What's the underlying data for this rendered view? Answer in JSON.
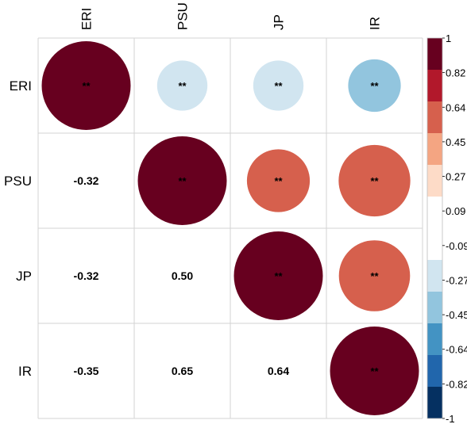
{
  "chart_data": {
    "type": "heatmap",
    "variables": [
      "ERI",
      "PSU",
      "JP",
      "IR"
    ],
    "matrix": [
      [
        1.0,
        -0.32,
        -0.32,
        -0.35
      ],
      [
        -0.32,
        1.0,
        0.5,
        0.65
      ],
      [
        -0.32,
        0.5,
        1.0,
        0.64
      ],
      [
        -0.35,
        0.65,
        0.64,
        1.0
      ]
    ],
    "lower_labels": [
      {
        "row": 1,
        "col": 0,
        "text": "-0.32"
      },
      {
        "row": 2,
        "col": 0,
        "text": "-0.32"
      },
      {
        "row": 2,
        "col": 1,
        "text": "0.50"
      },
      {
        "row": 3,
        "col": 0,
        "text": "-0.35"
      },
      {
        "row": 3,
        "col": 1,
        "text": "0.65"
      },
      {
        "row": 3,
        "col": 2,
        "text": "0.64"
      }
    ],
    "significance_marker": "**",
    "color_scale": {
      "range": [
        -1,
        1
      ],
      "ticks": [
        "1",
        "0.82",
        "0.64",
        "0.45",
        "0.27",
        "0.09",
        "-0.09",
        "-0.27",
        "-0.45",
        "-0.64",
        "-0.82",
        "-1"
      ],
      "bins": [
        "#053061",
        "#2166AC",
        "#4393C3",
        "#92C5DE",
        "#D1E5F0",
        "#FFFFFF",
        "#FFFFFF",
        "#FDDBC7",
        "#F4A582",
        "#D6604D",
        "#B2182B",
        "#67001F"
      ]
    },
    "upper_colors": {
      "strong_positive": "#67001F",
      "moderate_positive": "#B2182B",
      "mid_positive": "#D6604D",
      "weak_negative": "#92C5DE"
    },
    "grid": true,
    "legend_position": "right"
  }
}
